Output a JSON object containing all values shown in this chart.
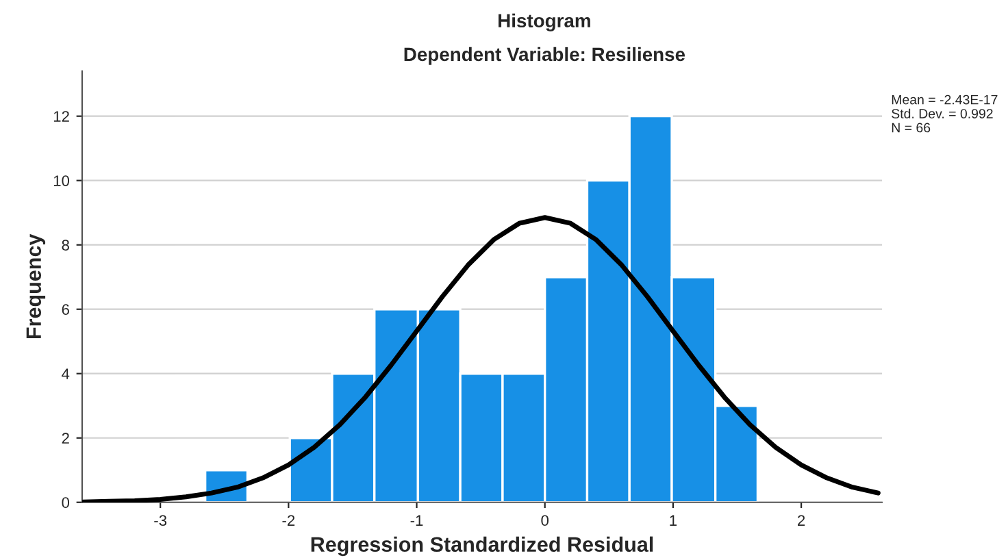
{
  "chart_data": {
    "type": "histogram",
    "title": "Histogram",
    "subtitle": "Dependent Variable: Resiliense",
    "xlabel": "Regression Standardized Residual",
    "ylabel": "Frequency",
    "bins": [
      -2.65,
      -2.32,
      -1.99,
      -1.66,
      -1.33,
      -0.99,
      -0.66,
      -0.33,
      0,
      0.33,
      0.66,
      0.99,
      1.33,
      1.66
    ],
    "values": [
      1,
      0,
      2,
      4,
      6,
      6,
      4,
      4,
      7,
      10,
      12,
      7,
      3
    ],
    "color": "#1790e6",
    "series": [
      {
        "type": "line",
        "color": "#000000",
        "x": [
          -3.6,
          -3.4,
          -3.2,
          -3.0,
          -2.8,
          -2.6,
          -2.4,
          -2.2,
          -2.0,
          -1.8,
          -1.6,
          -1.4,
          -1.2,
          -1.0,
          -0.8,
          -0.6,
          -0.4,
          -0.2,
          0,
          0.2,
          0.4,
          0.6,
          0.8,
          1.0,
          1.2,
          1.4,
          1.6,
          1.8,
          2.0,
          2.2,
          2.4,
          2.6
        ],
        "values": [
          0.01,
          0.03,
          0.05,
          0.09,
          0.17,
          0.29,
          0.47,
          0.76,
          1.16,
          1.71,
          2.41,
          3.27,
          4.26,
          5.32,
          6.39,
          7.37,
          8.16,
          8.67,
          8.85,
          8.67,
          8.16,
          7.37,
          6.39,
          5.32,
          4.26,
          3.27,
          2.41,
          1.71,
          1.16,
          0.76,
          0.47,
          0.29
        ]
      }
    ],
    "xlim": [
      -3.61,
      2.63
    ],
    "ylim": [
      0,
      13.4
    ],
    "xticks": [
      -3,
      -2,
      -1,
      0,
      1,
      2
    ],
    "yticks": [
      0,
      2,
      4,
      6,
      8,
      10,
      12
    ],
    "grid": "y",
    "annotations": [
      "Mean = -2.43E-17",
      "Std. Dev. = 0.992",
      "N = 66"
    ]
  }
}
